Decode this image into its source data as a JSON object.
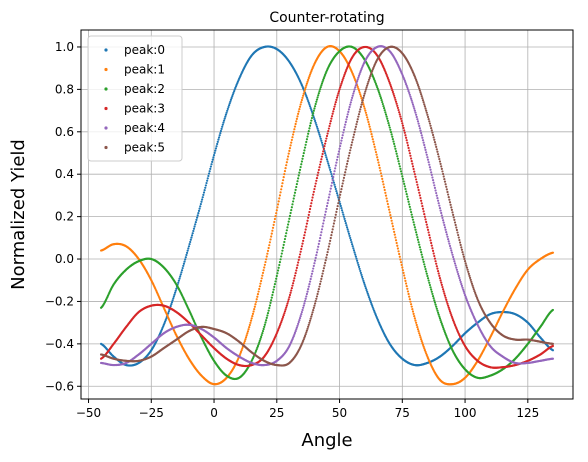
{
  "chart_data": {
    "type": "scatter",
    "title": "Counter-rotating",
    "xlabel": "Angle",
    "ylabel": "Normalized Yield",
    "xlim": [
      -53,
      143
    ],
    "ylim": [
      -0.66,
      1.08
    ],
    "xticks": [
      -50,
      -25,
      0,
      25,
      50,
      75,
      100,
      125
    ],
    "yticks": [
      -0.6,
      -0.4,
      -0.2,
      0.0,
      0.2,
      0.4,
      0.6,
      0.8,
      1.0
    ],
    "xtick_labels": [
      "−50",
      "−25",
      "0",
      "25",
      "50",
      "75",
      "100",
      "125"
    ],
    "ytick_labels": [
      "−0.6",
      "−0.4",
      "−0.2",
      "0.0",
      "0.2",
      "0.4",
      "0.6",
      "0.8",
      "1.0"
    ],
    "grid": true,
    "legend_position": "top-left",
    "x_range": [
      -45,
      135
    ],
    "series": [
      {
        "name": "peak:0",
        "color": "#1f77b4",
        "x": [
          -45,
          -40,
          -35,
          -30,
          -25,
          -20,
          -15,
          -10,
          -5,
          0,
          5,
          10,
          15,
          20,
          25,
          30,
          35,
          40,
          45,
          50,
          55,
          60,
          65,
          70,
          75,
          80,
          85,
          90,
          95,
          100,
          105,
          110,
          115,
          120,
          125,
          130,
          135
        ],
        "y": [
          -0.4,
          -0.46,
          -0.5,
          -0.49,
          -0.43,
          -0.31,
          -0.14,
          0.06,
          0.27,
          0.49,
          0.69,
          0.85,
          0.96,
          1.0,
          0.99,
          0.93,
          0.82,
          0.66,
          0.47,
          0.27,
          0.07,
          -0.12,
          -0.28,
          -0.4,
          -0.47,
          -0.5,
          -0.49,
          -0.46,
          -0.41,
          -0.35,
          -0.3,
          -0.26,
          -0.25,
          -0.26,
          -0.3,
          -0.37,
          -0.43
        ]
      },
      {
        "name": "peak:1",
        "color": "#ff7f0e",
        "x": [
          -45,
          -40,
          -35,
          -30,
          -25,
          -20,
          -15,
          -10,
          -5,
          0,
          5,
          10,
          15,
          20,
          25,
          30,
          35,
          40,
          45,
          50,
          55,
          60,
          65,
          70,
          75,
          80,
          85,
          90,
          95,
          100,
          105,
          110,
          115,
          120,
          125,
          130,
          135
        ],
        "y": [
          0.04,
          0.07,
          0.06,
          0.0,
          -0.1,
          -0.23,
          -0.36,
          -0.47,
          -0.55,
          -0.59,
          -0.56,
          -0.46,
          -0.28,
          -0.04,
          0.23,
          0.51,
          0.75,
          0.92,
          1.0,
          0.98,
          0.88,
          0.71,
          0.48,
          0.22,
          -0.04,
          -0.28,
          -0.46,
          -0.57,
          -0.59,
          -0.56,
          -0.48,
          -0.37,
          -0.25,
          -0.14,
          -0.05,
          0.0,
          0.03
        ]
      },
      {
        "name": "peak:2",
        "color": "#2ca02c",
        "x": [
          -45,
          -40,
          -35,
          -30,
          -25,
          -20,
          -15,
          -10,
          -5,
          0,
          5,
          10,
          15,
          20,
          25,
          30,
          35,
          40,
          45,
          50,
          55,
          60,
          65,
          70,
          75,
          80,
          85,
          90,
          95,
          100,
          105,
          110,
          115,
          120,
          125,
          130,
          135
        ],
        "y": [
          -0.23,
          -0.12,
          -0.05,
          -0.01,
          0.0,
          -0.04,
          -0.12,
          -0.24,
          -0.37,
          -0.48,
          -0.55,
          -0.56,
          -0.48,
          -0.32,
          -0.08,
          0.19,
          0.46,
          0.71,
          0.89,
          0.98,
          1.0,
          0.94,
          0.81,
          0.62,
          0.39,
          0.15,
          -0.08,
          -0.28,
          -0.43,
          -0.52,
          -0.56,
          -0.55,
          -0.52,
          -0.47,
          -0.4,
          -0.32,
          -0.24
        ]
      },
      {
        "name": "peak:3",
        "color": "#d62728",
        "x": [
          -45,
          -40,
          -35,
          -30,
          -25,
          -20,
          -15,
          -10,
          -5,
          0,
          5,
          10,
          15,
          20,
          25,
          30,
          35,
          40,
          45,
          50,
          55,
          60,
          65,
          70,
          75,
          80,
          85,
          90,
          95,
          100,
          105,
          110,
          115,
          120,
          125,
          130,
          135
        ],
        "y": [
          -0.47,
          -0.4,
          -0.32,
          -0.25,
          -0.22,
          -0.22,
          -0.25,
          -0.3,
          -0.36,
          -0.42,
          -0.47,
          -0.5,
          -0.5,
          -0.46,
          -0.35,
          -0.18,
          0.06,
          0.33,
          0.58,
          0.8,
          0.95,
          1.0,
          0.96,
          0.83,
          0.64,
          0.4,
          0.15,
          -0.09,
          -0.28,
          -0.41,
          -0.48,
          -0.51,
          -0.51,
          -0.5,
          -0.48,
          -0.45,
          -0.41
        ]
      },
      {
        "name": "peak:4",
        "color": "#9467bd",
        "x": [
          -45,
          -40,
          -35,
          -30,
          -25,
          -20,
          -15,
          -10,
          -5,
          0,
          5,
          10,
          15,
          20,
          25,
          30,
          35,
          40,
          45,
          50,
          55,
          60,
          65,
          70,
          75,
          80,
          85,
          90,
          95,
          100,
          105,
          110,
          115,
          120,
          125,
          130,
          135
        ],
        "y": [
          -0.49,
          -0.5,
          -0.49,
          -0.45,
          -0.4,
          -0.35,
          -0.32,
          -0.31,
          -0.33,
          -0.37,
          -0.42,
          -0.46,
          -0.49,
          -0.5,
          -0.48,
          -0.41,
          -0.25,
          -0.02,
          0.25,
          0.52,
          0.76,
          0.93,
          1.0,
          0.98,
          0.87,
          0.7,
          0.48,
          0.24,
          0.02,
          -0.17,
          -0.31,
          -0.41,
          -0.46,
          -0.49,
          -0.49,
          -0.48,
          -0.47
        ]
      },
      {
        "name": "peak:5",
        "color": "#8c564b",
        "x": [
          -45,
          -40,
          -35,
          -30,
          -25,
          -20,
          -15,
          -10,
          -5,
          0,
          5,
          10,
          15,
          20,
          25,
          30,
          35,
          40,
          45,
          50,
          55,
          60,
          65,
          70,
          75,
          80,
          85,
          90,
          95,
          100,
          105,
          110,
          115,
          120,
          125,
          130,
          135
        ],
        "y": [
          -0.45,
          -0.47,
          -0.48,
          -0.48,
          -0.46,
          -0.42,
          -0.38,
          -0.34,
          -0.32,
          -0.33,
          -0.35,
          -0.39,
          -0.44,
          -0.48,
          -0.5,
          -0.49,
          -0.4,
          -0.22,
          0.02,
          0.29,
          0.55,
          0.78,
          0.94,
          1.0,
          0.97,
          0.86,
          0.68,
          0.46,
          0.22,
          -0.01,
          -0.19,
          -0.3,
          -0.36,
          -0.38,
          -0.38,
          -0.39,
          -0.4
        ]
      }
    ]
  }
}
